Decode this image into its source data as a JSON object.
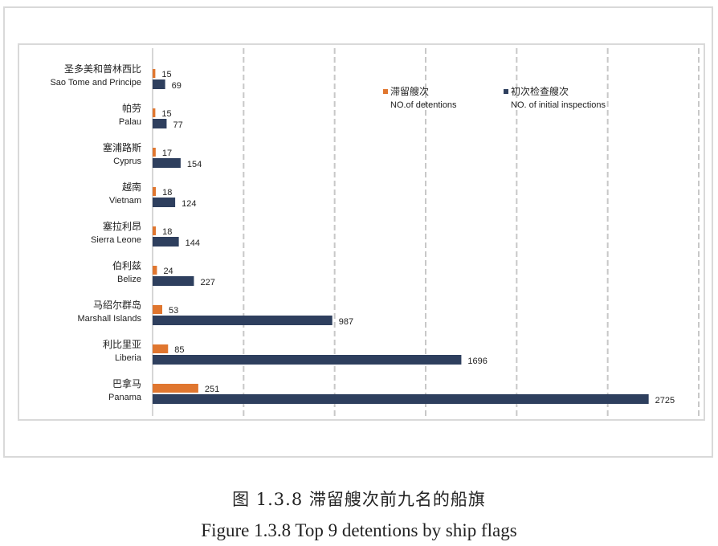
{
  "caption": {
    "zh": "图 1.3.8 滞留艘次前九名的船旗",
    "en": "Figure 1.3.8 Top 9 detentions by ship flags"
  },
  "legend": {
    "detentions": {
      "zh": "滞留艘次",
      "en": "NO.of detentions"
    },
    "inspections": {
      "zh": "初次检查艘次",
      "en": "NO. of initial inspections"
    }
  },
  "chart_data": {
    "type": "bar",
    "orientation": "horizontal",
    "categories_zh": [
      "圣多美和普林西比",
      "帕劳",
      "塞浦路斯",
      "越南",
      "塞拉利昂",
      "伯利兹",
      "马绍尔群岛",
      "利比里亚",
      "巴拿马"
    ],
    "categories": [
      "Sao Tome and Principe",
      "Palau",
      "Cyprus",
      "Vietnam",
      "Sierra Leone",
      "Belize",
      "Marshall Islands",
      "Liberia",
      "Panama"
    ],
    "series": [
      {
        "name": "滞留艘次 NO.of detentions",
        "color": "#e0762f",
        "values": [
          15,
          15,
          17,
          18,
          18,
          24,
          53,
          85,
          251
        ]
      },
      {
        "name": "初次检查艘次 NO. of initial inspections",
        "color": "#2e3f5e",
        "values": [
          69,
          77,
          154,
          124,
          144,
          227,
          987,
          1696,
          2725
        ]
      }
    ],
    "xlim": [
      0,
      3000
    ],
    "grid": "vertical dashed",
    "legend_position": "top-right"
  }
}
